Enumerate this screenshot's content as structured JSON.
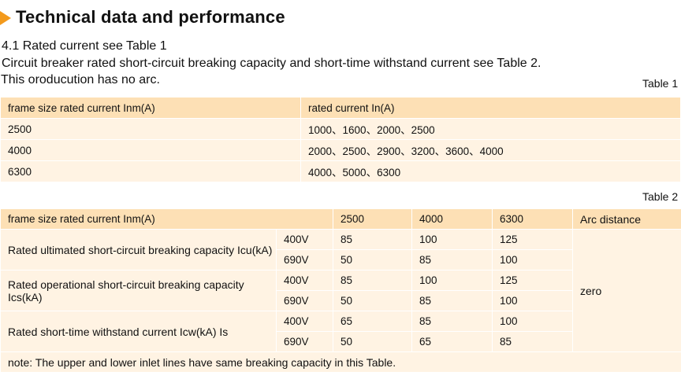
{
  "heading": "Technical data and performance",
  "subheading": "4.1 Rated current see Table 1",
  "intro_line": "Circuit breaker rated short-circuit breaking capacity and short-time withstand current see Table 2.",
  "arc_line": "This oroducution has no arc.",
  "table1": {
    "caption": "Table 1",
    "headers": [
      "frame size rated current Inm(A)",
      "rated current In(A)"
    ],
    "rows": [
      [
        "2500",
        "1000、1600、2000、2500"
      ],
      [
        "4000",
        "2000、2500、2900、3200、3600、4000"
      ],
      [
        "6300",
        "4000、5000、6300"
      ]
    ]
  },
  "table2": {
    "caption": "Table 2",
    "headers": [
      "frame size rated current Inm(A)",
      "2500",
      "4000",
      "6300",
      "Arc distance"
    ],
    "groups": [
      {
        "label": "Rated ultimated short-circuit breaking capacity Icu(kA)",
        "rows": [
          [
            "400V",
            "85",
            "100",
            "125"
          ],
          [
            "690V",
            "50",
            "85",
            "100"
          ]
        ]
      },
      {
        "label": "Rated operational short-circuit breaking capacity Ics(kA)",
        "rows": [
          [
            "400V",
            "85",
            "100",
            "125"
          ],
          [
            "690V",
            "50",
            "85",
            "100"
          ]
        ]
      },
      {
        "label": "Rated short-time withstand current Icw(kA) Is",
        "rows": [
          [
            "400V",
            "65",
            "85",
            "100"
          ],
          [
            "690V",
            "50",
            "65",
            "85"
          ]
        ]
      }
    ],
    "arc_value": "zero",
    "note": "note: The upper and lower inlet lines have same breaking capacity in this Table."
  }
}
